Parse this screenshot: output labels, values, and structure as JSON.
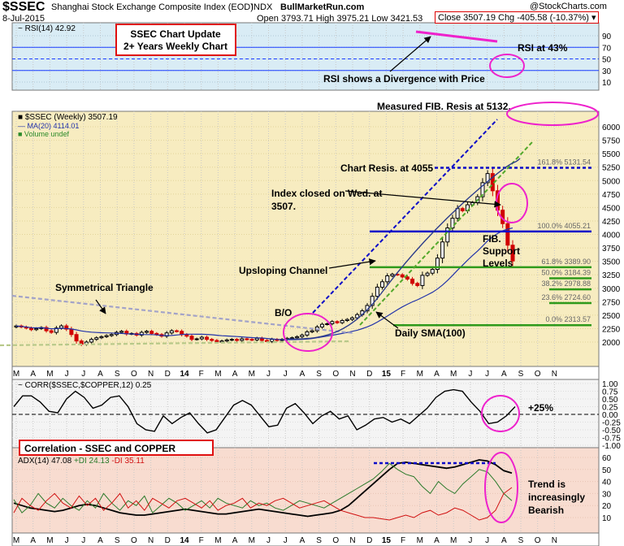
{
  "header": {
    "symbol": "$SSEC",
    "name": "Shanghai Stock Exchange Composite Index (EOD)",
    "exchange": "INDX",
    "date": "8-Jul-2015",
    "site": "BullMarketRun.com",
    "ohl": "Open 3793.71 High 3975.21 Low 3421.53",
    "close_chg": "Close 3507.19 Chg -405.58 (-10.37%) ▾",
    "copyright": "@StockCharts.com"
  },
  "panels": {
    "rsi": {
      "label": "RSI(14) 42.92",
      "ticks": [
        "90",
        "70",
        "50",
        "30",
        "10"
      ],
      "reference_levels": [
        70,
        50,
        30
      ]
    },
    "price": {
      "legend_main": "■ $SSEC (Weekly) 3507.19",
      "legend_ma": "— MA(20) 4114.01",
      "legend_vol": "■ Volume undef",
      "ticks": [
        "6000",
        "5750",
        "5500",
        "5250",
        "5000",
        "4750",
        "4500",
        "4250",
        "4000",
        "3750",
        "3500",
        "3250",
        "3000",
        "2750",
        "2500",
        "2250",
        "2000"
      ],
      "fib_labels": [
        "161.8% 5131.54",
        "100.0% 4055.21",
        "61.8% 3389.90",
        "50.0% 3184.39",
        "38.2% 2978.88",
        "23.6% 2724.60",
        "0.0% 2313.57"
      ],
      "fib_values": [
        5131.54,
        4055.21,
        3389.9,
        3184.39,
        2978.88,
        2724.6,
        2313.57
      ]
    },
    "corr": {
      "label": "CORR($SSEC,$COPPER,12) 0.25",
      "ticks": [
        "1.00",
        "0.75",
        "0.50",
        "0.25",
        "0.00",
        "-0.25",
        "-0.50",
        "-0.75",
        "-1.00"
      ]
    },
    "adx": {
      "label_adx": "ADX(14) 47.08",
      "label_pdi": "+DI 24.13",
      "label_mdi": "-DI 35.11",
      "ticks": [
        "60",
        "50",
        "40",
        "30",
        "20",
        "10"
      ]
    }
  },
  "x_axis_months": [
    "M",
    "A",
    "M",
    "J",
    "J",
    "A",
    "S",
    "O",
    "N",
    "D",
    "14",
    "F",
    "M",
    "A",
    "M",
    "J",
    "J",
    "A",
    "S",
    "O",
    "N",
    "D",
    "15",
    "F",
    "M",
    "A",
    "M",
    "J",
    "J",
    "A",
    "S",
    "O",
    "N"
  ],
  "annotations": {
    "title_box": "SSEC Chart Update\n2+ Years Weekly Chart",
    "rsi_43": "RSI at 43%",
    "divergence": "RSI shows a Divergence with Price",
    "measured_fib": "Measured FIB. Resis at 5132.",
    "chart_resis": "Chart Resis. at 4055",
    "index_closed": "Index closed on Wed. at\n3507.",
    "fib_support": "FIB.\nSupport\nLevels",
    "upsloping": "Upsloping Channel",
    "sym_triangle": "Symmetrical Triangle",
    "bo": "B/O",
    "daily_sma": "Daily SMA(100)",
    "corr_title": "Correlation - SSEC and COPPER",
    "plus25": "+25%",
    "trend": "Trend is\nincreasingly\nBearish"
  },
  "colors": {
    "rsi_bg": "#d9ecf5",
    "price_bg": "#f7ecc0",
    "corr_bg": "#f4f4f4",
    "adx_bg": "#f8dcd0",
    "annotation_red": "#e01010",
    "magenta": "#ee22cc",
    "fib_green": "#2e9a1a",
    "resis_blue": "#0a0ac8",
    "up_candle": "#000000",
    "down_candle": "#d00000"
  },
  "chart_data": {
    "type": "candlestick",
    "title": "Shanghai Stock Exchange Composite Index (EOD)",
    "timeframe": "Weekly",
    "price_range": [
      1900,
      6150
    ],
    "weekly_close": [
      2300,
      2280,
      2260,
      2230,
      2250,
      2270,
      2210,
      2180,
      2260,
      2300,
      2240,
      2140,
      2020,
      1960,
      2000,
      2050,
      2080,
      2100,
      2120,
      2140,
      2180,
      2200,
      2150,
      2160,
      2130,
      2180,
      2200,
      2160,
      2140,
      2110,
      2170,
      2210,
      2200,
      2140,
      2110,
      2050,
      2060,
      2090,
      2050,
      2030,
      2000,
      2020,
      2040,
      2050,
      2030,
      2060,
      2050,
      2040,
      2070,
      2030,
      2010,
      2050,
      2030,
      2050,
      2070,
      2080,
      2100,
      2130,
      2190,
      2210,
      2280,
      2330,
      2340,
      2380,
      2360,
      2400,
      2420,
      2450,
      2510,
      2580,
      2680,
      2850,
      3020,
      3120,
      3230,
      3260,
      3250,
      3210,
      3170,
      3090,
      3050,
      3240,
      3280,
      3350,
      3560,
      3860,
      4120,
      4300,
      4480,
      4440,
      4550,
      4590,
      4700,
      4960,
      5130,
      4810,
      4450,
      4200,
      3800,
      3507.19
    ],
    "ma20_last": 4114.01,
    "rsi_last": 42.92,
    "correlation_last": 0.25,
    "adx_last": 47.08,
    "plus_di_last": 24.13,
    "minus_di_last": 35.11
  }
}
